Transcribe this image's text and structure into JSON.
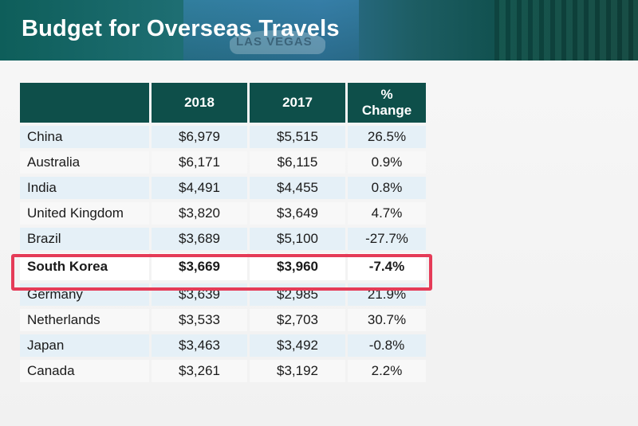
{
  "title": "Budget for Overseas Travels",
  "banner": {
    "sign_text": "LAS VEGAS",
    "colors": {
      "primary": "#0e5e5a",
      "header_cell": "#0e4f4a",
      "highlight": "#e53b57"
    }
  },
  "table": {
    "headers": [
      "",
      "2018",
      "2017",
      "% Change"
    ],
    "rows": [
      {
        "country": "China",
        "y2018": "$6,979",
        "y2017": "$5,515",
        "change": "26.5%"
      },
      {
        "country": "Australia",
        "y2018": "$6,171",
        "y2017": "$6,115",
        "change": "0.9%"
      },
      {
        "country": "India",
        "y2018": "$4,491",
        "y2017": "$4,455",
        "change": "0.8%"
      },
      {
        "country": "United Kingdom",
        "y2018": "$3,820",
        "y2017": "$3,649",
        "change": "4.7%"
      },
      {
        "country": "Brazil",
        "y2018": "$3,689",
        "y2017": "$5,100",
        "change": "-27.7%"
      },
      {
        "country": "South Korea",
        "y2018": "$3,669",
        "y2017": "$3,960",
        "change": "-7.4%"
      },
      {
        "country": "Germany",
        "y2018": "$3,639",
        "y2017": "$2,985",
        "change": "21.9%"
      },
      {
        "country": "Netherlands",
        "y2018": "$3,533",
        "y2017": "$2,703",
        "change": "30.7%"
      },
      {
        "country": "Japan",
        "y2018": "$3,463",
        "y2017": "$3,492",
        "change": "-0.8%"
      },
      {
        "country": "Canada",
        "y2018": "$3,261",
        "y2017": "$3,192",
        "change": "2.2%"
      }
    ],
    "highlighted_country": "South Korea"
  }
}
